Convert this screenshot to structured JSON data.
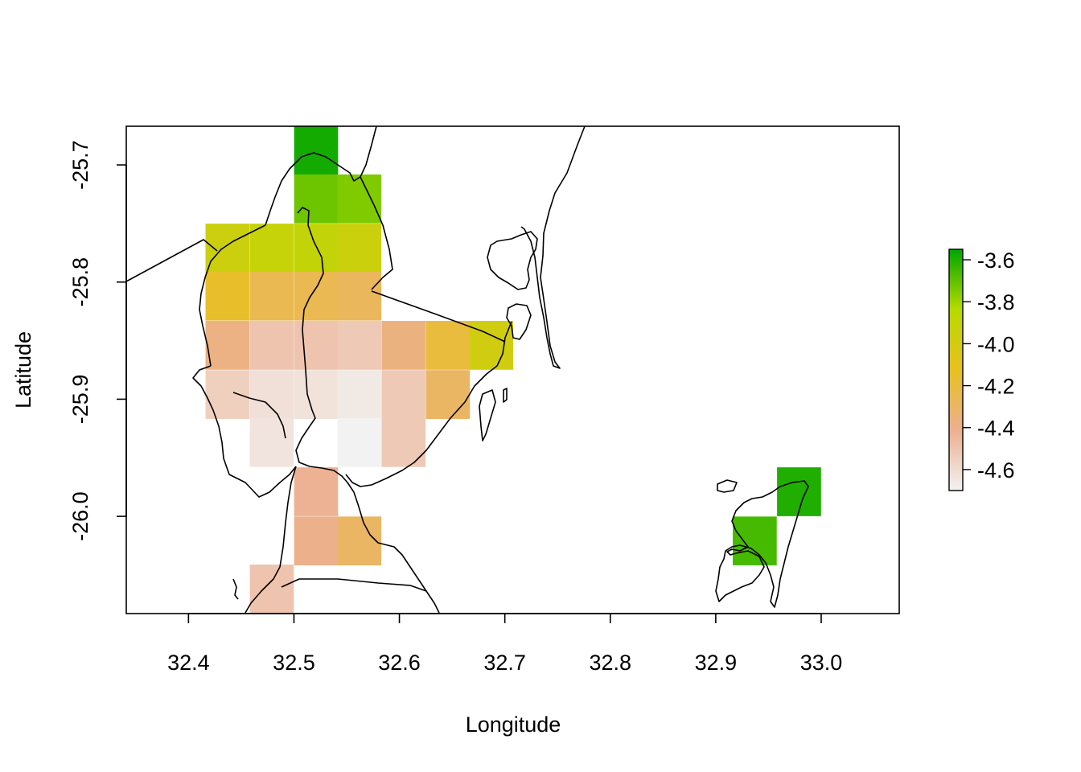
{
  "chart_data": {
    "type": "heatmap",
    "title": "",
    "xlabel": "Longitude",
    "ylabel": "Latitude",
    "xlim": [
      32.341,
      33.074
    ],
    "ylim": [
      -26.083,
      -25.667
    ],
    "x_ticks": [
      "32.4",
      "32.5",
      "32.6",
      "32.7",
      "32.8",
      "32.9",
      "33.0"
    ],
    "y_ticks": [
      "-25.7",
      "-25.8",
      "-25.9",
      "-26.0"
    ],
    "grid": false,
    "legend_position": "right",
    "colorbar": {
      "min": -4.7,
      "max": -3.55,
      "ticks": [
        "-3.6",
        "-3.8",
        "-4.0",
        "-4.2",
        "-4.4",
        "-4.6"
      ],
      "colors": [
        "#f2f2f2",
        "#ecb090",
        "#e8c020",
        "#b8da00",
        "#00a600"
      ]
    },
    "cell_size": {
      "dlon": 0.0417,
      "dlat": 0.0417
    },
    "cells": [
      {
        "lon": 32.521,
        "lat": -25.688,
        "value": -3.58
      },
      {
        "lon": 32.521,
        "lat": -25.729,
        "value": -3.72
      },
      {
        "lon": 32.562,
        "lat": -25.729,
        "value": -3.75
      },
      {
        "lon": 32.437,
        "lat": -25.771,
        "value": -3.96
      },
      {
        "lon": 32.479,
        "lat": -25.771,
        "value": -3.92
      },
      {
        "lon": 32.521,
        "lat": -25.771,
        "value": -3.9
      },
      {
        "lon": 32.562,
        "lat": -25.771,
        "value": -3.95
      },
      {
        "lon": 32.437,
        "lat": -25.812,
        "value": -4.15
      },
      {
        "lon": 32.479,
        "lat": -25.812,
        "value": -4.25
      },
      {
        "lon": 32.521,
        "lat": -25.812,
        "value": -4.25
      },
      {
        "lon": 32.562,
        "lat": -25.812,
        "value": -4.28
      },
      {
        "lon": 32.437,
        "lat": -25.854,
        "value": -4.38
      },
      {
        "lon": 32.479,
        "lat": -25.854,
        "value": -4.5
      },
      {
        "lon": 32.521,
        "lat": -25.854,
        "value": -4.5
      },
      {
        "lon": 32.562,
        "lat": -25.854,
        "value": -4.52
      },
      {
        "lon": 32.604,
        "lat": -25.854,
        "value": -4.37
      },
      {
        "lon": 32.646,
        "lat": -25.854,
        "value": -4.2
      },
      {
        "lon": 32.687,
        "lat": -25.854,
        "value": -3.98
      },
      {
        "lon": 32.437,
        "lat": -25.896,
        "value": -4.55
      },
      {
        "lon": 32.479,
        "lat": -25.896,
        "value": -4.62
      },
      {
        "lon": 32.521,
        "lat": -25.896,
        "value": -4.63
      },
      {
        "lon": 32.562,
        "lat": -25.896,
        "value": -4.66
      },
      {
        "lon": 32.604,
        "lat": -25.896,
        "value": -4.52
      },
      {
        "lon": 32.646,
        "lat": -25.896,
        "value": -4.3
      },
      {
        "lon": 32.479,
        "lat": -25.937,
        "value": -4.64
      },
      {
        "lon": 32.562,
        "lat": -25.937,
        "value": -4.7
      },
      {
        "lon": 32.604,
        "lat": -25.937,
        "value": -4.52
      },
      {
        "lon": 32.521,
        "lat": -25.979,
        "value": -4.42
      },
      {
        "lon": 32.521,
        "lat": -26.021,
        "value": -4.4
      },
      {
        "lon": 32.562,
        "lat": -26.021,
        "value": -4.3
      },
      {
        "lon": 32.479,
        "lat": -26.062,
        "value": -4.5
      },
      {
        "lon": 32.979,
        "lat": -25.979,
        "value": -3.6
      },
      {
        "lon": 32.937,
        "lat": -26.021,
        "value": -3.66
      }
    ]
  }
}
